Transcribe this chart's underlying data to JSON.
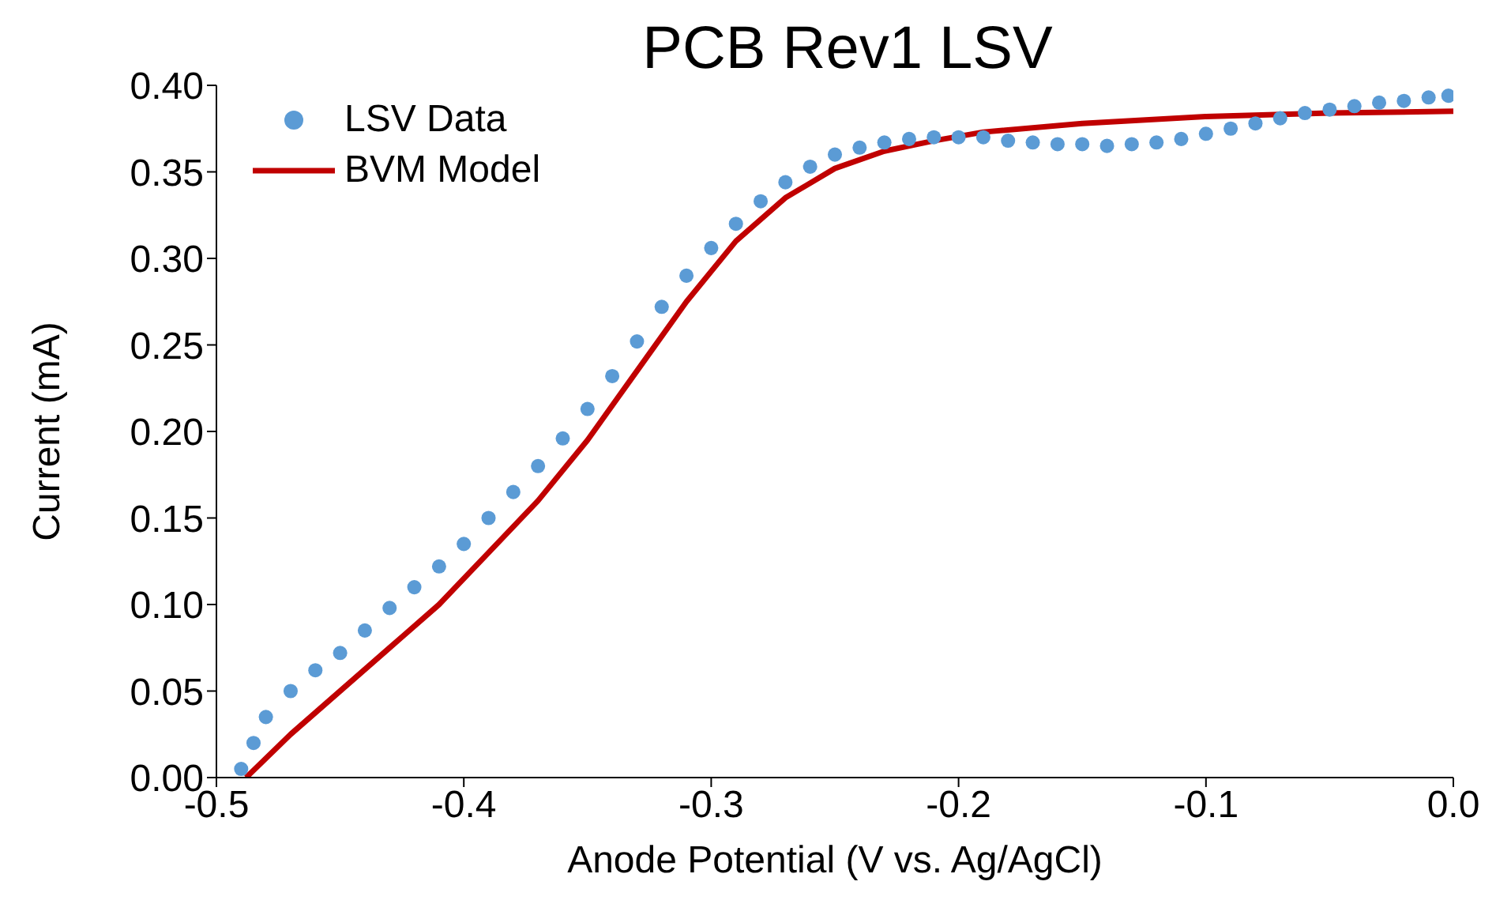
{
  "chart_data": {
    "type": "scatter",
    "title": "PCB Rev1 LSV",
    "xlabel": "Anode Potential (V vs. Ag/AgCl)",
    "ylabel": "Current (mA)",
    "xlim": [
      -0.5,
      0
    ],
    "xticks": [
      -0.5,
      -0.4,
      -0.3,
      -0.2,
      -0.1,
      {
        "value": 0,
        "label": "0.0"
      }
    ],
    "ylim": [
      0,
      0.4
    ],
    "yticks": [
      {
        "value": 0,
        "label": "0.00"
      },
      {
        "value": 0.05,
        "label": "0.05"
      },
      {
        "value": 0.1,
        "label": "0.10"
      },
      {
        "value": 0.15,
        "label": "0.15"
      },
      {
        "value": 0.2,
        "label": "0.20"
      },
      {
        "value": 0.25,
        "label": "0.25"
      },
      {
        "value": 0.3,
        "label": "0.30"
      },
      {
        "value": 0.35,
        "label": "0.35"
      },
      {
        "value": 0.4,
        "label": "0.40"
      }
    ],
    "grid": false,
    "legend": "top left",
    "marker": "circle",
    "series": [
      {
        "name": "LSV Data",
        "color": "#5b9bd5",
        "x": [
          -0.49,
          -0.485,
          -0.48,
          -0.47,
          -0.46,
          -0.45,
          -0.44,
          -0.43,
          -0.42,
          -0.41,
          -0.4,
          -0.39,
          -0.38,
          -0.37,
          -0.36,
          -0.35,
          -0.34,
          -0.33,
          -0.32,
          -0.31,
          -0.3,
          -0.29,
          -0.28,
          -0.27,
          -0.26,
          -0.25,
          -0.24,
          -0.23,
          -0.22,
          -0.21,
          -0.2,
          -0.19,
          -0.18,
          -0.17,
          -0.16,
          -0.15,
          -0.14,
          -0.13,
          -0.12,
          -0.11,
          -0.1,
          -0.09,
          -0.08,
          -0.07,
          -0.06,
          -0.05,
          -0.04,
          -0.03,
          -0.02,
          -0.01,
          -0.002
        ],
        "values": [
          0.005,
          0.02,
          0.035,
          0.05,
          0.062,
          0.072,
          0.085,
          0.098,
          0.11,
          0.122,
          0.135,
          0.15,
          0.165,
          0.18,
          0.196,
          0.213,
          0.232,
          0.252,
          0.272,
          0.29,
          0.306,
          0.32,
          0.333,
          0.344,
          0.353,
          0.36,
          0.364,
          0.367,
          0.369,
          0.37,
          0.37,
          0.37,
          0.368,
          0.367,
          0.366,
          0.366,
          0.365,
          0.366,
          0.367,
          0.369,
          0.372,
          0.375,
          0.378,
          0.381,
          0.384,
          0.386,
          0.388,
          0.39,
          0.391,
          0.393,
          0.394
        ]
      },
      {
        "name": "BVM Model",
        "type": "line",
        "color": "#c00000",
        "line_style": "solid",
        "marker": "none",
        "x": [
          -0.488,
          -0.47,
          -0.45,
          -0.43,
          -0.41,
          -0.39,
          -0.37,
          -0.35,
          -0.33,
          -0.31,
          -0.29,
          -0.27,
          -0.25,
          -0.23,
          -0.21,
          -0.19,
          -0.15,
          -0.1,
          -0.05,
          0
        ],
        "values": [
          0,
          0.025,
          0.05,
          0.075,
          0.1,
          0.13,
          0.16,
          0.195,
          0.235,
          0.275,
          0.31,
          0.335,
          0.352,
          0.362,
          0.368,
          0.373,
          0.378,
          0.382,
          0.384,
          0.385
        ]
      }
    ]
  }
}
